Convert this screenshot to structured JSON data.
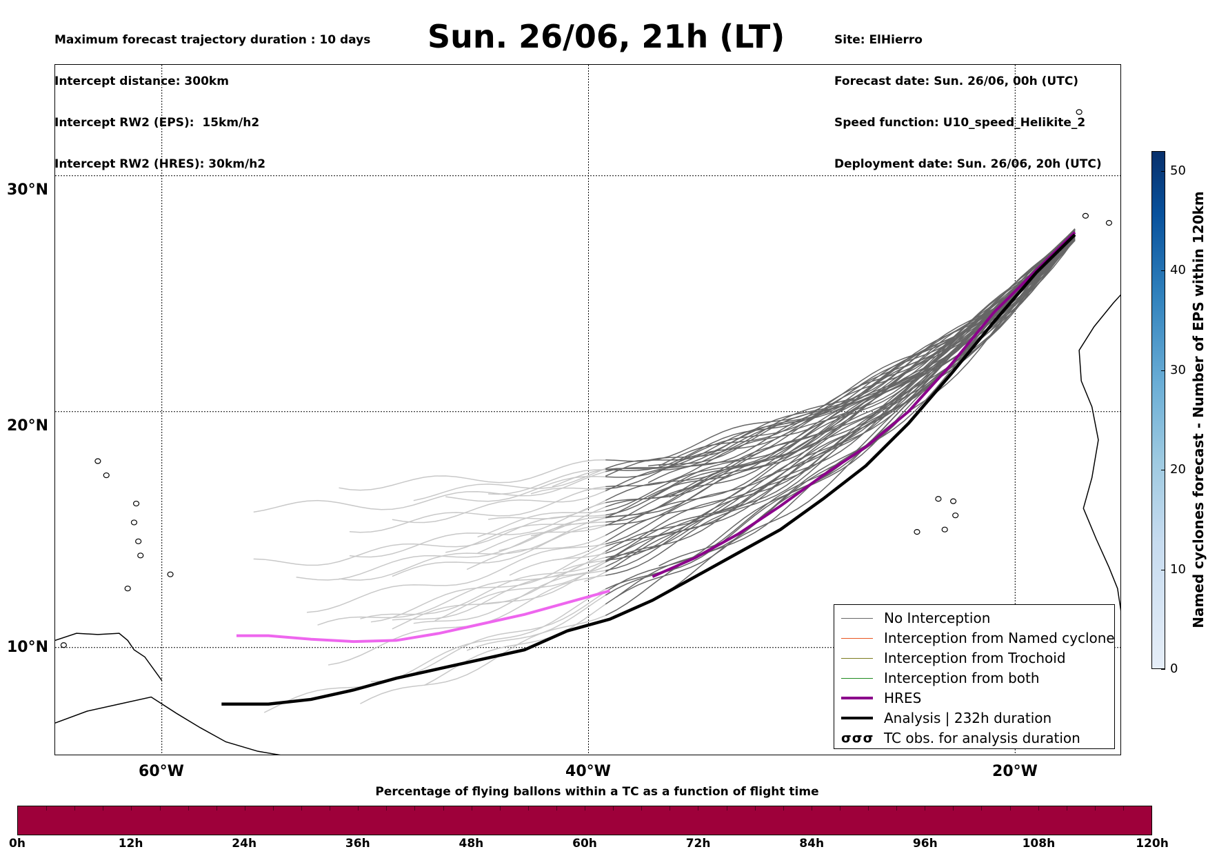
{
  "header_left": [
    "Maximum forecast trajectory duration : 10 days",
    "Intercept distance: 300km",
    "Intercept RW2 (EPS):  15km/h2",
    "Intercept RW2 (HRES): 30km/h2"
  ],
  "title": "Sun. 26/06, 21h (LT)",
  "header_right": [
    "Site: ElHierro",
    "Forecast date: Sun. 26/06, 00h (UTC)",
    "Speed function: U10_speed_Helikite_2",
    "Deployment date: Sun. 26/06, 20h (UTC)"
  ],
  "map": {
    "lat_labels": [
      "30°N",
      "20°N",
      "10°N"
    ],
    "lon_labels": [
      "60°W",
      "40°W",
      "20°W"
    ],
    "lat_range": [
      5.4,
      34.7
    ],
    "lon_range": [
      -65,
      -15
    ],
    "grid_lats": [
      30,
      20,
      10
    ],
    "grid_lons": [
      -60,
      -40,
      -20
    ],
    "colors": {
      "no_interception": "#666666",
      "no_interception_light": "#c8c8c8",
      "named_cyclone": "#e8541e",
      "trochoid": "#7a7a1e",
      "both": "#1e8a1e",
      "hres": "#8b008b",
      "hres_light": "#ee66ee",
      "analysis": "#000000"
    },
    "hres_track": [
      [
        -17.2,
        27.6
      ],
      [
        -19,
        26
      ],
      [
        -21,
        24.2
      ],
      [
        -23,
        22
      ],
      [
        -25,
        20
      ],
      [
        -27,
        18.5
      ],
      [
        -29,
        17.3
      ],
      [
        -31,
        16
      ],
      [
        -33,
        14.8
      ],
      [
        -35,
        13.8
      ],
      [
        -37,
        13
      ],
      [
        -39,
        12.4
      ],
      [
        -41,
        11.9
      ],
      [
        -43,
        11.4
      ],
      [
        -45,
        11
      ],
      [
        -47,
        10.6
      ],
      [
        -49,
        10.3
      ],
      [
        -51,
        10.25
      ],
      [
        -53,
        10.35
      ],
      [
        -55,
        10.5
      ],
      [
        -56.5,
        10.5
      ]
    ],
    "hres_light_from_lon": -38.5,
    "analysis_track": [
      [
        -17.2,
        27.5
      ],
      [
        -19,
        25.9
      ],
      [
        -21,
        23.8
      ],
      [
        -23,
        21.6
      ],
      [
        -25,
        19.5
      ],
      [
        -27,
        17.7
      ],
      [
        -29,
        16.3
      ],
      [
        -31,
        15
      ],
      [
        -33,
        14
      ],
      [
        -35,
        13
      ],
      [
        -37,
        12
      ],
      [
        -39,
        11.2
      ],
      [
        -41,
        10.7
      ],
      [
        -43,
        9.9
      ],
      [
        -45,
        9.5
      ],
      [
        -47,
        9.1
      ],
      [
        -49,
        8.7
      ],
      [
        -51,
        8.2
      ],
      [
        -53,
        7.8
      ],
      [
        -55,
        7.6
      ],
      [
        -57.2,
        7.6
      ]
    ]
  },
  "legend": {
    "items": [
      {
        "label": "No Interception",
        "style": "no_interception"
      },
      {
        "label": "Interception from Named cyclone",
        "style": "named_cyclone"
      },
      {
        "label": "Interception from Trochoid",
        "style": "trochoid"
      },
      {
        "label": "Interception from both",
        "style": "both"
      },
      {
        "label": "HRES",
        "style": "hres"
      },
      {
        "label": "Analysis | 232h duration",
        "style": "analysis"
      },
      {
        "label": "TC obs. for analysis duration",
        "style": "tc_obs",
        "symbol": "σσσ"
      }
    ]
  },
  "right_colorbar": {
    "label": "Named cyclones forecast - Number of EPS within 120km",
    "ticks": [
      "0",
      "10",
      "20",
      "30",
      "40",
      "50"
    ],
    "range": [
      0,
      52
    ]
  },
  "bottom_colorbar": {
    "title": "Percentage of flying ballons within a TC as a function of flight time",
    "ticks": [
      "0h",
      "12h",
      "24h",
      "36h",
      "48h",
      "60h",
      "72h",
      "84h",
      "96h",
      "108h",
      "120h"
    ],
    "fill_color": "#9e003a"
  }
}
